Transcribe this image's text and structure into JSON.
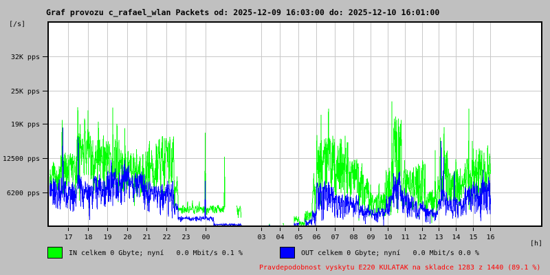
{
  "title": "Graf provozu c_rafael_wlan Packets od: 2025-12-09 16:03:00 do: 2025-12-10 16:01:00",
  "y_axis": {
    "unit_label": "[/s]",
    "ticks": [
      {
        "label": "32K pps",
        "pps": 30750
      },
      {
        "label": "25K pps",
        "pps": 24550
      },
      {
        "label": "19K pps",
        "pps": 18600
      },
      {
        "label": "12500 pps",
        "pps": 12400
      },
      {
        "label": "6200 pps",
        "pps": 6200
      }
    ]
  },
  "x_axis": {
    "unit_label": "[h]",
    "ticks": [
      {
        "label": "17",
        "hour": 17
      },
      {
        "label": "18",
        "hour": 18
      },
      {
        "label": "19",
        "hour": 19
      },
      {
        "label": "20",
        "hour": 20
      },
      {
        "label": "21",
        "hour": 21
      },
      {
        "label": "22",
        "hour": 22
      },
      {
        "label": "23",
        "hour": 23
      },
      {
        "label": "00",
        "hour": 24
      },
      {
        "label": "03",
        "hour": 27
      },
      {
        "label": "04",
        "hour": 28
      },
      {
        "label": "05",
        "hour": 29
      },
      {
        "label": "06",
        "hour": 30
      },
      {
        "label": "07",
        "hour": 31
      },
      {
        "label": "08",
        "hour": 32
      },
      {
        "label": "09",
        "hour": 33
      },
      {
        "label": "10",
        "hour": 34
      },
      {
        "label": "11",
        "hour": 35
      },
      {
        "label": "12",
        "hour": 36
      },
      {
        "label": "13",
        "hour": 37
      },
      {
        "label": "14",
        "hour": 38
      },
      {
        "label": "15",
        "hour": 39
      },
      {
        "label": "16",
        "hour": 40
      }
    ]
  },
  "legend": {
    "in_label": "IN celkem 0 Gbyte; nyní   0.0 Mbit/s 0.1 %",
    "in_color": "#00ff00",
    "out_label": "OUT celkem 0 Gbyte; nyní   0.0 Mbit/s 0.0 %",
    "out_color": "#0000ff"
  },
  "footer": {
    "text": "Pravdepodobnost vyskytu E220 KULATAK na skladce 1283 z 1440 (89.1 %)",
    "color": "#ff0000"
  },
  "chart_data": {
    "type": "line",
    "unit": "packets per second",
    "time_start": "2025-12-09 16:03:00",
    "time_end": "2025-12-10 16:01:00",
    "x_unit": "hours since day1 00:00 (16.05 = 16:03, 40.02 = next-day 16:01)",
    "ylim": [
      0,
      37000
    ],
    "series": [
      {
        "name": "IN",
        "color": "#00ff00",
        "seed": 987654321,
        "envelope_segments": [
          [
            16.05,
            16.6,
            5800,
            10500
          ],
          [
            16.6,
            16.85,
            6200,
            13500
          ],
          [
            16.85,
            17.4,
            6000,
            12000
          ],
          [
            17.4,
            17.7,
            6500,
            14500
          ],
          [
            17.7,
            18.2,
            6200,
            15000
          ],
          [
            18.2,
            19.0,
            6000,
            13500
          ],
          [
            19.0,
            19.6,
            6200,
            14000
          ],
          [
            19.6,
            20.1,
            5500,
            12000
          ],
          [
            20.1,
            20.9,
            5200,
            11500
          ],
          [
            20.9,
            21.6,
            5000,
            12500
          ],
          [
            21.6,
            22.4,
            5200,
            13800
          ],
          [
            22.4,
            22.6,
            3000,
            8000
          ],
          [
            22.6,
            24.0,
            2300,
            3500
          ],
          [
            24.0,
            25.05,
            2400,
            3500
          ],
          [
            25.68,
            25.92,
            1500,
            3300
          ],
          [
            27.4,
            27.48,
            200,
            500
          ],
          [
            28.15,
            28.22,
            300,
            600
          ],
          [
            28.75,
            29.05,
            300,
            1500
          ],
          [
            29.05,
            29.35,
            200,
            800
          ],
          [
            29.35,
            29.75,
            400,
            2500
          ],
          [
            29.75,
            30.0,
            1500,
            6500
          ],
          [
            30.0,
            30.9,
            5000,
            14000
          ],
          [
            30.9,
            31.7,
            5200,
            13500
          ],
          [
            31.7,
            32.3,
            4200,
            10500
          ],
          [
            32.3,
            32.9,
            2500,
            8500
          ],
          [
            32.9,
            33.9,
            1800,
            5200
          ],
          [
            33.9,
            34.3,
            3000,
            9000
          ],
          [
            34.3,
            34.8,
            5000,
            17000
          ],
          [
            34.8,
            35.5,
            3500,
            9000
          ],
          [
            35.5,
            36.2,
            3000,
            9500
          ],
          [
            36.2,
            36.9,
            1500,
            5500
          ],
          [
            36.9,
            37.1,
            2500,
            8000
          ],
          [
            37.1,
            37.5,
            4000,
            12000
          ],
          [
            37.5,
            38.5,
            3500,
            9000
          ],
          [
            38.5,
            39.0,
            4500,
            10500
          ],
          [
            39.0,
            40.02,
            4500,
            12000
          ]
        ],
        "spikes": [
          [
            16.7,
            19300
          ],
          [
            17.0,
            13000
          ],
          [
            17.5,
            21600
          ],
          [
            17.62,
            18500
          ],
          [
            17.85,
            19500
          ],
          [
            18.02,
            21000
          ],
          [
            18.55,
            19000
          ],
          [
            18.8,
            16500
          ],
          [
            19.28,
            21500
          ],
          [
            19.5,
            18600
          ],
          [
            19.9,
            17800
          ],
          [
            20.5,
            14000
          ],
          [
            21.15,
            15500
          ],
          [
            21.5,
            15000
          ],
          [
            21.8,
            15500
          ],
          [
            23.1,
            4600
          ],
          [
            23.35,
            4800
          ],
          [
            23.7,
            4600
          ],
          [
            24.0,
            17000
          ],
          [
            25.03,
            12650
          ],
          [
            25.8,
            3300
          ],
          [
            29.85,
            9700
          ],
          [
            30.25,
            20200
          ],
          [
            30.5,
            16000
          ],
          [
            30.65,
            21300
          ],
          [
            31.55,
            16400
          ],
          [
            32.5,
            11500
          ],
          [
            33.0,
            7600
          ],
          [
            33.5,
            7800
          ],
          [
            33.85,
            8000
          ],
          [
            34.25,
            22600
          ],
          [
            34.4,
            19500
          ],
          [
            34.75,
            18600
          ],
          [
            35.0,
            12000
          ],
          [
            35.75,
            10400
          ],
          [
            36.05,
            12000
          ],
          [
            36.78,
            13800
          ],
          [
            37.08,
            16100
          ],
          [
            37.3,
            18000
          ],
          [
            38.0,
            12200
          ],
          [
            38.75,
            21300
          ],
          [
            38.95,
            15500
          ],
          [
            39.5,
            12500
          ],
          [
            39.85,
            14700
          ]
        ]
      },
      {
        "name": "OUT",
        "color": "#0000ff",
        "seed": 123456789,
        "envelope_segments": [
          [
            16.05,
            16.6,
            2800,
            7500
          ],
          [
            16.6,
            16.85,
            3000,
            8000
          ],
          [
            16.85,
            17.4,
            2500,
            7000
          ],
          [
            17.4,
            17.7,
            3000,
            8500
          ],
          [
            17.7,
            18.2,
            2200,
            7000
          ],
          [
            18.2,
            19.0,
            3000,
            8000
          ],
          [
            19.0,
            19.6,
            3500,
            9500
          ],
          [
            19.6,
            20.1,
            3500,
            9500
          ],
          [
            20.1,
            20.9,
            3000,
            8500
          ],
          [
            20.9,
            21.6,
            2500,
            7000
          ],
          [
            21.6,
            22.4,
            2500,
            7000
          ],
          [
            22.4,
            22.6,
            1500,
            4000
          ],
          [
            22.6,
            24.0,
            1000,
            1700
          ],
          [
            24.0,
            24.45,
            1000,
            1700
          ],
          [
            24.45,
            25.95,
            150,
            450
          ],
          [
            27.4,
            27.48,
            150,
            350
          ],
          [
            28.75,
            29.05,
            150,
            600
          ],
          [
            29.35,
            29.75,
            200,
            1200
          ],
          [
            29.75,
            30.0,
            500,
            2500
          ],
          [
            30.0,
            30.9,
            2000,
            7000
          ],
          [
            30.9,
            31.7,
            1500,
            5000
          ],
          [
            31.7,
            32.3,
            1500,
            4800
          ],
          [
            32.3,
            32.9,
            1000,
            3500
          ],
          [
            32.9,
            33.9,
            700,
            2800
          ],
          [
            33.9,
            34.3,
            1500,
            5000
          ],
          [
            34.3,
            34.8,
            3000,
            8500
          ],
          [
            34.8,
            35.5,
            1500,
            5500
          ],
          [
            35.5,
            36.2,
            1200,
            4000
          ],
          [
            36.2,
            36.9,
            800,
            3000
          ],
          [
            36.9,
            37.1,
            1500,
            5000
          ],
          [
            37.1,
            37.5,
            1500,
            6000
          ],
          [
            37.5,
            38.5,
            1200,
            4500
          ],
          [
            38.5,
            39.0,
            2000,
            6500
          ],
          [
            39.0,
            40.02,
            2000,
            7000
          ]
        ],
        "spikes": [
          [
            16.73,
            17900
          ],
          [
            17.52,
            16200
          ],
          [
            18.6,
            9500
          ],
          [
            19.2,
            12000
          ],
          [
            19.9,
            12000
          ],
          [
            24.0,
            8300
          ],
          [
            30.55,
            7400
          ],
          [
            34.35,
            9700
          ],
          [
            35.0,
            7000
          ],
          [
            37.14,
            15500
          ],
          [
            37.28,
            12600
          ],
          [
            37.9,
            10000
          ],
          [
            39.6,
            10300
          ],
          [
            39.9,
            9000
          ]
        ]
      }
    ]
  }
}
